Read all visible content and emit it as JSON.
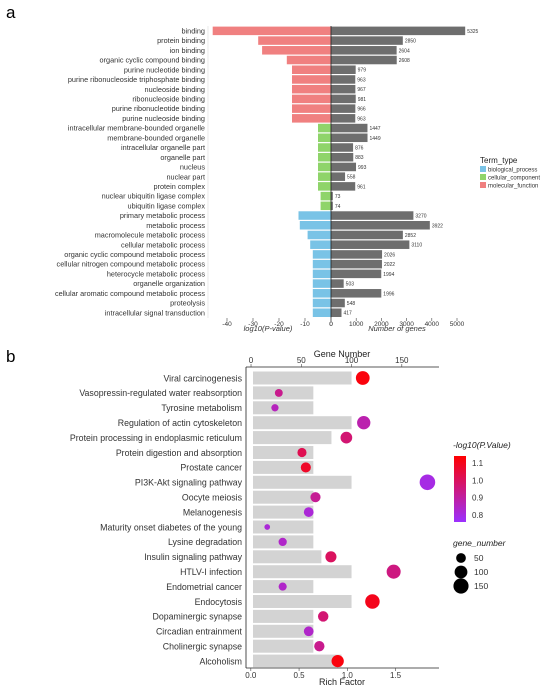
{
  "panel_labels": {
    "a": "a",
    "b": "b"
  },
  "chart_data": [
    {
      "type": "bar",
      "panel": "a",
      "left_axis_label": "log10(P-value)",
      "right_axis_label": "Number of genes",
      "left_ticks": [
        -40,
        -30,
        -20,
        -10,
        0
      ],
      "right_ticks": [
        0,
        1000,
        2000,
        3000,
        4000,
        5000
      ],
      "legend_title": "Term_type",
      "legend": [
        {
          "name": "biological_process",
          "color": "#79c3e6"
        },
        {
          "name": "cellular_component",
          "color": "#8fd46a"
        },
        {
          "name": "molecular_function",
          "color": "#f08080"
        }
      ],
      "gene_bar_color": "#6e6e6e",
      "terms": [
        {
          "label": "binding",
          "type": "molecular_function",
          "log10p": -45.5,
          "genes": 5325
        },
        {
          "label": "protein binding",
          "type": "molecular_function",
          "log10p": -28,
          "genes": 2850
        },
        {
          "label": "ion binding",
          "type": "molecular_function",
          "log10p": -26.5,
          "genes": 2604
        },
        {
          "label": "organic cyclic compound binding",
          "type": "molecular_function",
          "log10p": -17,
          "genes": 2608
        },
        {
          "label": "purine nucleotide binding",
          "type": "molecular_function",
          "log10p": -15,
          "genes": 979
        },
        {
          "label": "purine ribonucleoside triphosphate binding",
          "type": "molecular_function",
          "log10p": -15,
          "genes": 963
        },
        {
          "label": "nucleoside binding",
          "type": "molecular_function",
          "log10p": -15,
          "genes": 967
        },
        {
          "label": "ribonucleoside binding",
          "type": "molecular_function",
          "log10p": -15,
          "genes": 981
        },
        {
          "label": "purine ribonucleotide binding",
          "type": "molecular_function",
          "log10p": -15,
          "genes": 966
        },
        {
          "label": "purine nucleoside binding",
          "type": "molecular_function",
          "log10p": -15,
          "genes": 963
        },
        {
          "label": "intracellular membrane-bounded organelle",
          "type": "cellular_component",
          "log10p": -5,
          "genes": 1447
        },
        {
          "label": "membrane-bounded organelle",
          "type": "cellular_component",
          "log10p": -5,
          "genes": 1449
        },
        {
          "label": "intracellular organelle part",
          "type": "cellular_component",
          "log10p": -5,
          "genes": 876
        },
        {
          "label": "organelle part",
          "type": "cellular_component",
          "log10p": -5,
          "genes": 883
        },
        {
          "label": "nucleus",
          "type": "cellular_component",
          "log10p": -5,
          "genes": 993
        },
        {
          "label": "nuclear part",
          "type": "cellular_component",
          "log10p": -5,
          "genes": 558
        },
        {
          "label": "protein complex",
          "type": "cellular_component",
          "log10p": -5,
          "genes": 961
        },
        {
          "label": "nuclear ubiquitin ligase complex",
          "type": "cellular_component",
          "log10p": -4,
          "genes": 73
        },
        {
          "label": "ubiquitin ligase complex",
          "type": "cellular_component",
          "log10p": -4,
          "genes": 74
        },
        {
          "label": "primary metabolic process",
          "type": "biological_process",
          "log10p": -12.5,
          "genes": 3270
        },
        {
          "label": "metabolic process",
          "type": "biological_process",
          "log10p": -12,
          "genes": 3922
        },
        {
          "label": "macromolecule metabolic process",
          "type": "biological_process",
          "log10p": -9,
          "genes": 2852
        },
        {
          "label": "cellular metabolic process",
          "type": "biological_process",
          "log10p": -8,
          "genes": 3110
        },
        {
          "label": "organic cyclic compound metabolic process",
          "type": "biological_process",
          "log10p": -7,
          "genes": 2026
        },
        {
          "label": "cellular nitrogen compound metabolic process",
          "type": "biological_process",
          "log10p": -7,
          "genes": 2022
        },
        {
          "label": "heterocycle metabolic process",
          "type": "biological_process",
          "log10p": -7,
          "genes": 1994
        },
        {
          "label": "organelle organization",
          "type": "biological_process",
          "log10p": -7,
          "genes": 503
        },
        {
          "label": "cellular aromatic compound metabolic process",
          "type": "biological_process",
          "log10p": -7,
          "genes": 1996
        },
        {
          "label": "proteolysis",
          "type": "biological_process",
          "log10p": -7,
          "genes": 548
        },
        {
          "label": "intracellular signal transduction",
          "type": "biological_process",
          "log10p": -7,
          "genes": 417
        }
      ]
    },
    {
      "type": "scatter",
      "panel": "b",
      "top_axis_label": "Gene Number",
      "xlabel": "Rich Factor",
      "top_ticks": [
        0,
        50,
        100,
        150
      ],
      "x_ticks": [
        0.0,
        0.5,
        1.0,
        1.5
      ],
      "xlim": [
        -0.05,
        1.95
      ],
      "top_lim": [
        -5,
        187
      ],
      "background_bar_color": "#d3d3d3",
      "color_legend_title": "-log10(P.Value)",
      "color_scale": {
        "min": 0.76,
        "max": 1.14,
        "low_color": "#9b30ff",
        "high_color": "#ff0000"
      },
      "color_ticks": [
        1.1,
        1.0,
        0.9,
        0.8
      ],
      "size_legend_title": "gene_number",
      "size_legend": [
        50,
        100,
        150
      ],
      "pathways": [
        {
          "label": "Viral carcinogenesis",
          "rich_factor": 1.16,
          "gene_number": 120,
          "neglog10p": 1.12
        },
        {
          "label": "Vasopressin-regulated water reabsorption",
          "rich_factor": 0.29,
          "gene_number": 28,
          "neglog10p": 0.93
        },
        {
          "label": "Tyrosine metabolism",
          "rich_factor": 0.25,
          "gene_number": 22,
          "neglog10p": 0.86
        },
        {
          "label": "Regulation of actin cytoskeleton",
          "rich_factor": 1.17,
          "gene_number": 110,
          "neglog10p": 0.88
        },
        {
          "label": "Protein processing in endoplasmic reticulum",
          "rich_factor": 0.99,
          "gene_number": 80,
          "neglog10p": 0.97
        },
        {
          "label": "Protein digestion and absorption",
          "rich_factor": 0.53,
          "gene_number": 42,
          "neglog10p": 1.02
        },
        {
          "label": "Prostate cancer",
          "rich_factor": 0.57,
          "gene_number": 55,
          "neglog10p": 1.08
        },
        {
          "label": "PI3K-Akt signaling pathway",
          "rich_factor": 1.83,
          "gene_number": 160,
          "neglog10p": 0.8
        },
        {
          "label": "Oocyte meiosis",
          "rich_factor": 0.67,
          "gene_number": 55,
          "neglog10p": 0.92
        },
        {
          "label": "Melanogenesis",
          "rich_factor": 0.6,
          "gene_number": 50,
          "neglog10p": 0.82
        },
        {
          "label": "Maturity onset diabetes of the young",
          "rich_factor": 0.17,
          "gene_number": 10,
          "neglog10p": 0.82
        },
        {
          "label": "Lysine degradation",
          "rich_factor": 0.33,
          "gene_number": 32,
          "neglog10p": 0.84
        },
        {
          "label": "Insulin signaling pathway",
          "rich_factor": 0.83,
          "gene_number": 70,
          "neglog10p": 1.0
        },
        {
          "label": "HTLV-I infection",
          "rich_factor": 1.48,
          "gene_number": 125,
          "neglog10p": 0.95
        },
        {
          "label": "Endometrial cancer",
          "rich_factor": 0.33,
          "gene_number": 30,
          "neglog10p": 0.84
        },
        {
          "label": "Endocytosis",
          "rich_factor": 1.26,
          "gene_number": 135,
          "neglog10p": 1.1
        },
        {
          "label": "Dopaminergic synapse",
          "rich_factor": 0.75,
          "gene_number": 60,
          "neglog10p": 0.97
        },
        {
          "label": "Circadian entrainment",
          "rich_factor": 0.6,
          "gene_number": 50,
          "neglog10p": 0.84
        },
        {
          "label": "Cholinergic synapse",
          "rich_factor": 0.71,
          "gene_number": 58,
          "neglog10p": 0.93
        },
        {
          "label": "Alcoholism",
          "rich_factor": 0.9,
          "gene_number": 90,
          "neglog10p": 1.12
        }
      ]
    }
  ]
}
